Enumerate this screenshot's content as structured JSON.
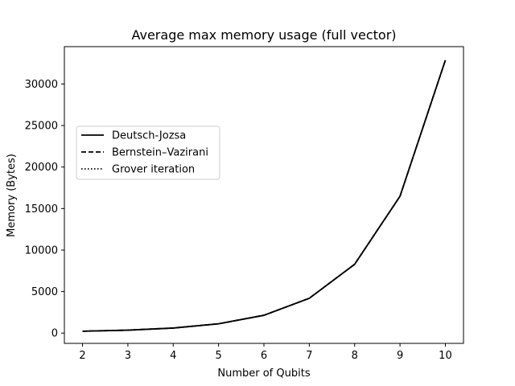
{
  "chart_data": {
    "type": "line",
    "title": "Average max memory usage (full vector)",
    "xlabel": "Number of Qubits",
    "ylabel": "Memory (Bytes)",
    "x": [
      2,
      3,
      4,
      5,
      6,
      7,
      8,
      9,
      10
    ],
    "xlim": [
      1.6,
      10.4
    ],
    "ylim": [
      -1240,
      34500
    ],
    "xticks": [
      2,
      3,
      4,
      5,
      6,
      7,
      8,
      9,
      10
    ],
    "yticks": [
      0,
      5000,
      10000,
      15000,
      20000,
      25000,
      30000
    ],
    "grid": false,
    "legend_position": "center-left",
    "series": [
      {
        "name": "Deutsch-Jozsa",
        "style": "solid",
        "color": "#000000",
        "values": [
          224,
          352,
          608,
          1120,
          2144,
          4192,
          8288,
          16480,
          32864
        ]
      },
      {
        "name": "Bernstein–Vazirani",
        "style": "dashed",
        "color": "#000000",
        "values": [
          224,
          352,
          608,
          1120,
          2144,
          4192,
          8288,
          16480,
          32864
        ]
      },
      {
        "name": "Grover iteration",
        "style": "dotted",
        "color": "#000000",
        "values": [
          224,
          352,
          608,
          1120,
          2144,
          4192,
          8288,
          16480,
          32864
        ]
      }
    ]
  }
}
